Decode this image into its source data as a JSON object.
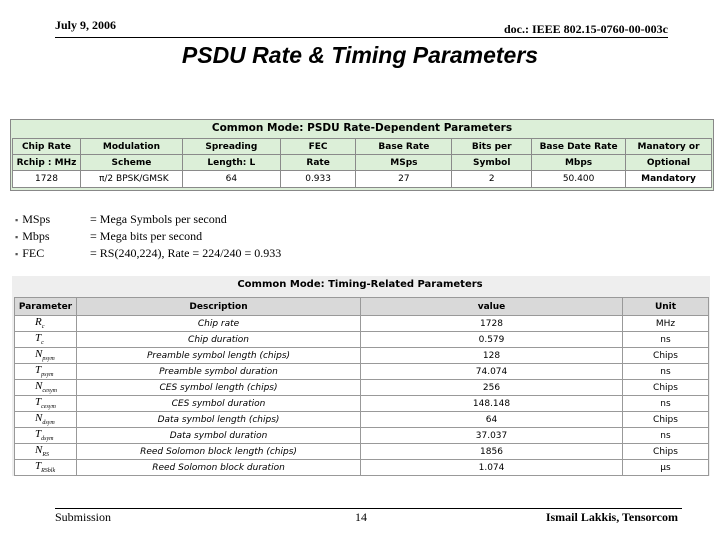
{
  "header": {
    "date": "July 9, 2006",
    "doc": "doc.: IEEE 802.15-0760-00-003c"
  },
  "title": "PSDU Rate & Timing Parameters",
  "rate_table": {
    "title": "Common Mode: PSDU Rate-Dependent Parameters",
    "header_row1": [
      "Chip Rate",
      "Modulation",
      "Spreading",
      "FEC",
      "Base Rate",
      "Bits per",
      "Base Date Rate",
      "Manatory or"
    ],
    "header_row2": [
      "Rchip : MHz",
      "Scheme",
      "Length: L",
      "Rate",
      "MSps",
      "Symbol",
      "Mbps",
      "Optional"
    ],
    "row": [
      "1728",
      "π/2 BPSK/GMSK",
      "64",
      "0.933",
      "27",
      "2",
      "50.400",
      "Mandatory"
    ]
  },
  "notes": [
    {
      "term": "MSps",
      "def": "= Mega Symbols per second"
    },
    {
      "term": "Mbps",
      "def": "= Mega bits per second"
    },
    {
      "term": "FEC",
      "def": "= RS(240,224), Rate = 224/240 = 0.933"
    }
  ],
  "timing_table": {
    "title": "Common Mode: Timing-Related Parameters",
    "headers": [
      "Parameter",
      "Description",
      "value",
      "Unit"
    ],
    "rows": [
      {
        "sym": "R",
        "sub": "c",
        "desc": "Chip rate",
        "value": "1728",
        "unit": "MHz"
      },
      {
        "sym": "T",
        "sub": "c",
        "desc": "Chip duration",
        "value": "0.579",
        "unit": "ns"
      },
      {
        "sym": "N",
        "sub": "psym",
        "desc": "Preamble symbol length (chips)",
        "value": "128",
        "unit": "Chips"
      },
      {
        "sym": "T",
        "sub": "psym",
        "desc": "Preamble symbol duration",
        "value": "74.074",
        "unit": "ns"
      },
      {
        "sym": "N",
        "sub": "cesym",
        "desc": "CES symbol length (chips)",
        "value": "256",
        "unit": "Chips"
      },
      {
        "sym": "T",
        "sub": "cesym",
        "desc": "CES symbol duration",
        "value": "148.148",
        "unit": "ns"
      },
      {
        "sym": "N",
        "sub": "dsym",
        "desc": "Data symbol length (chips)",
        "value": "64",
        "unit": "Chips"
      },
      {
        "sym": "T",
        "sub": "dsym",
        "desc": "Data symbol duration",
        "value": "37.037",
        "unit": "ns"
      },
      {
        "sym": "N",
        "sub": "RS",
        "desc": "Reed Solomon block length (chips)",
        "value": "1856",
        "unit": "Chips"
      },
      {
        "sym": "T",
        "sub": "RSblk",
        "desc": "Reed Solomon block duration",
        "value": "1.074",
        "unit": "µs"
      }
    ]
  },
  "footer": {
    "left": "Submission",
    "page": "14",
    "right": "Ismail Lakkis, Tensorcom"
  }
}
